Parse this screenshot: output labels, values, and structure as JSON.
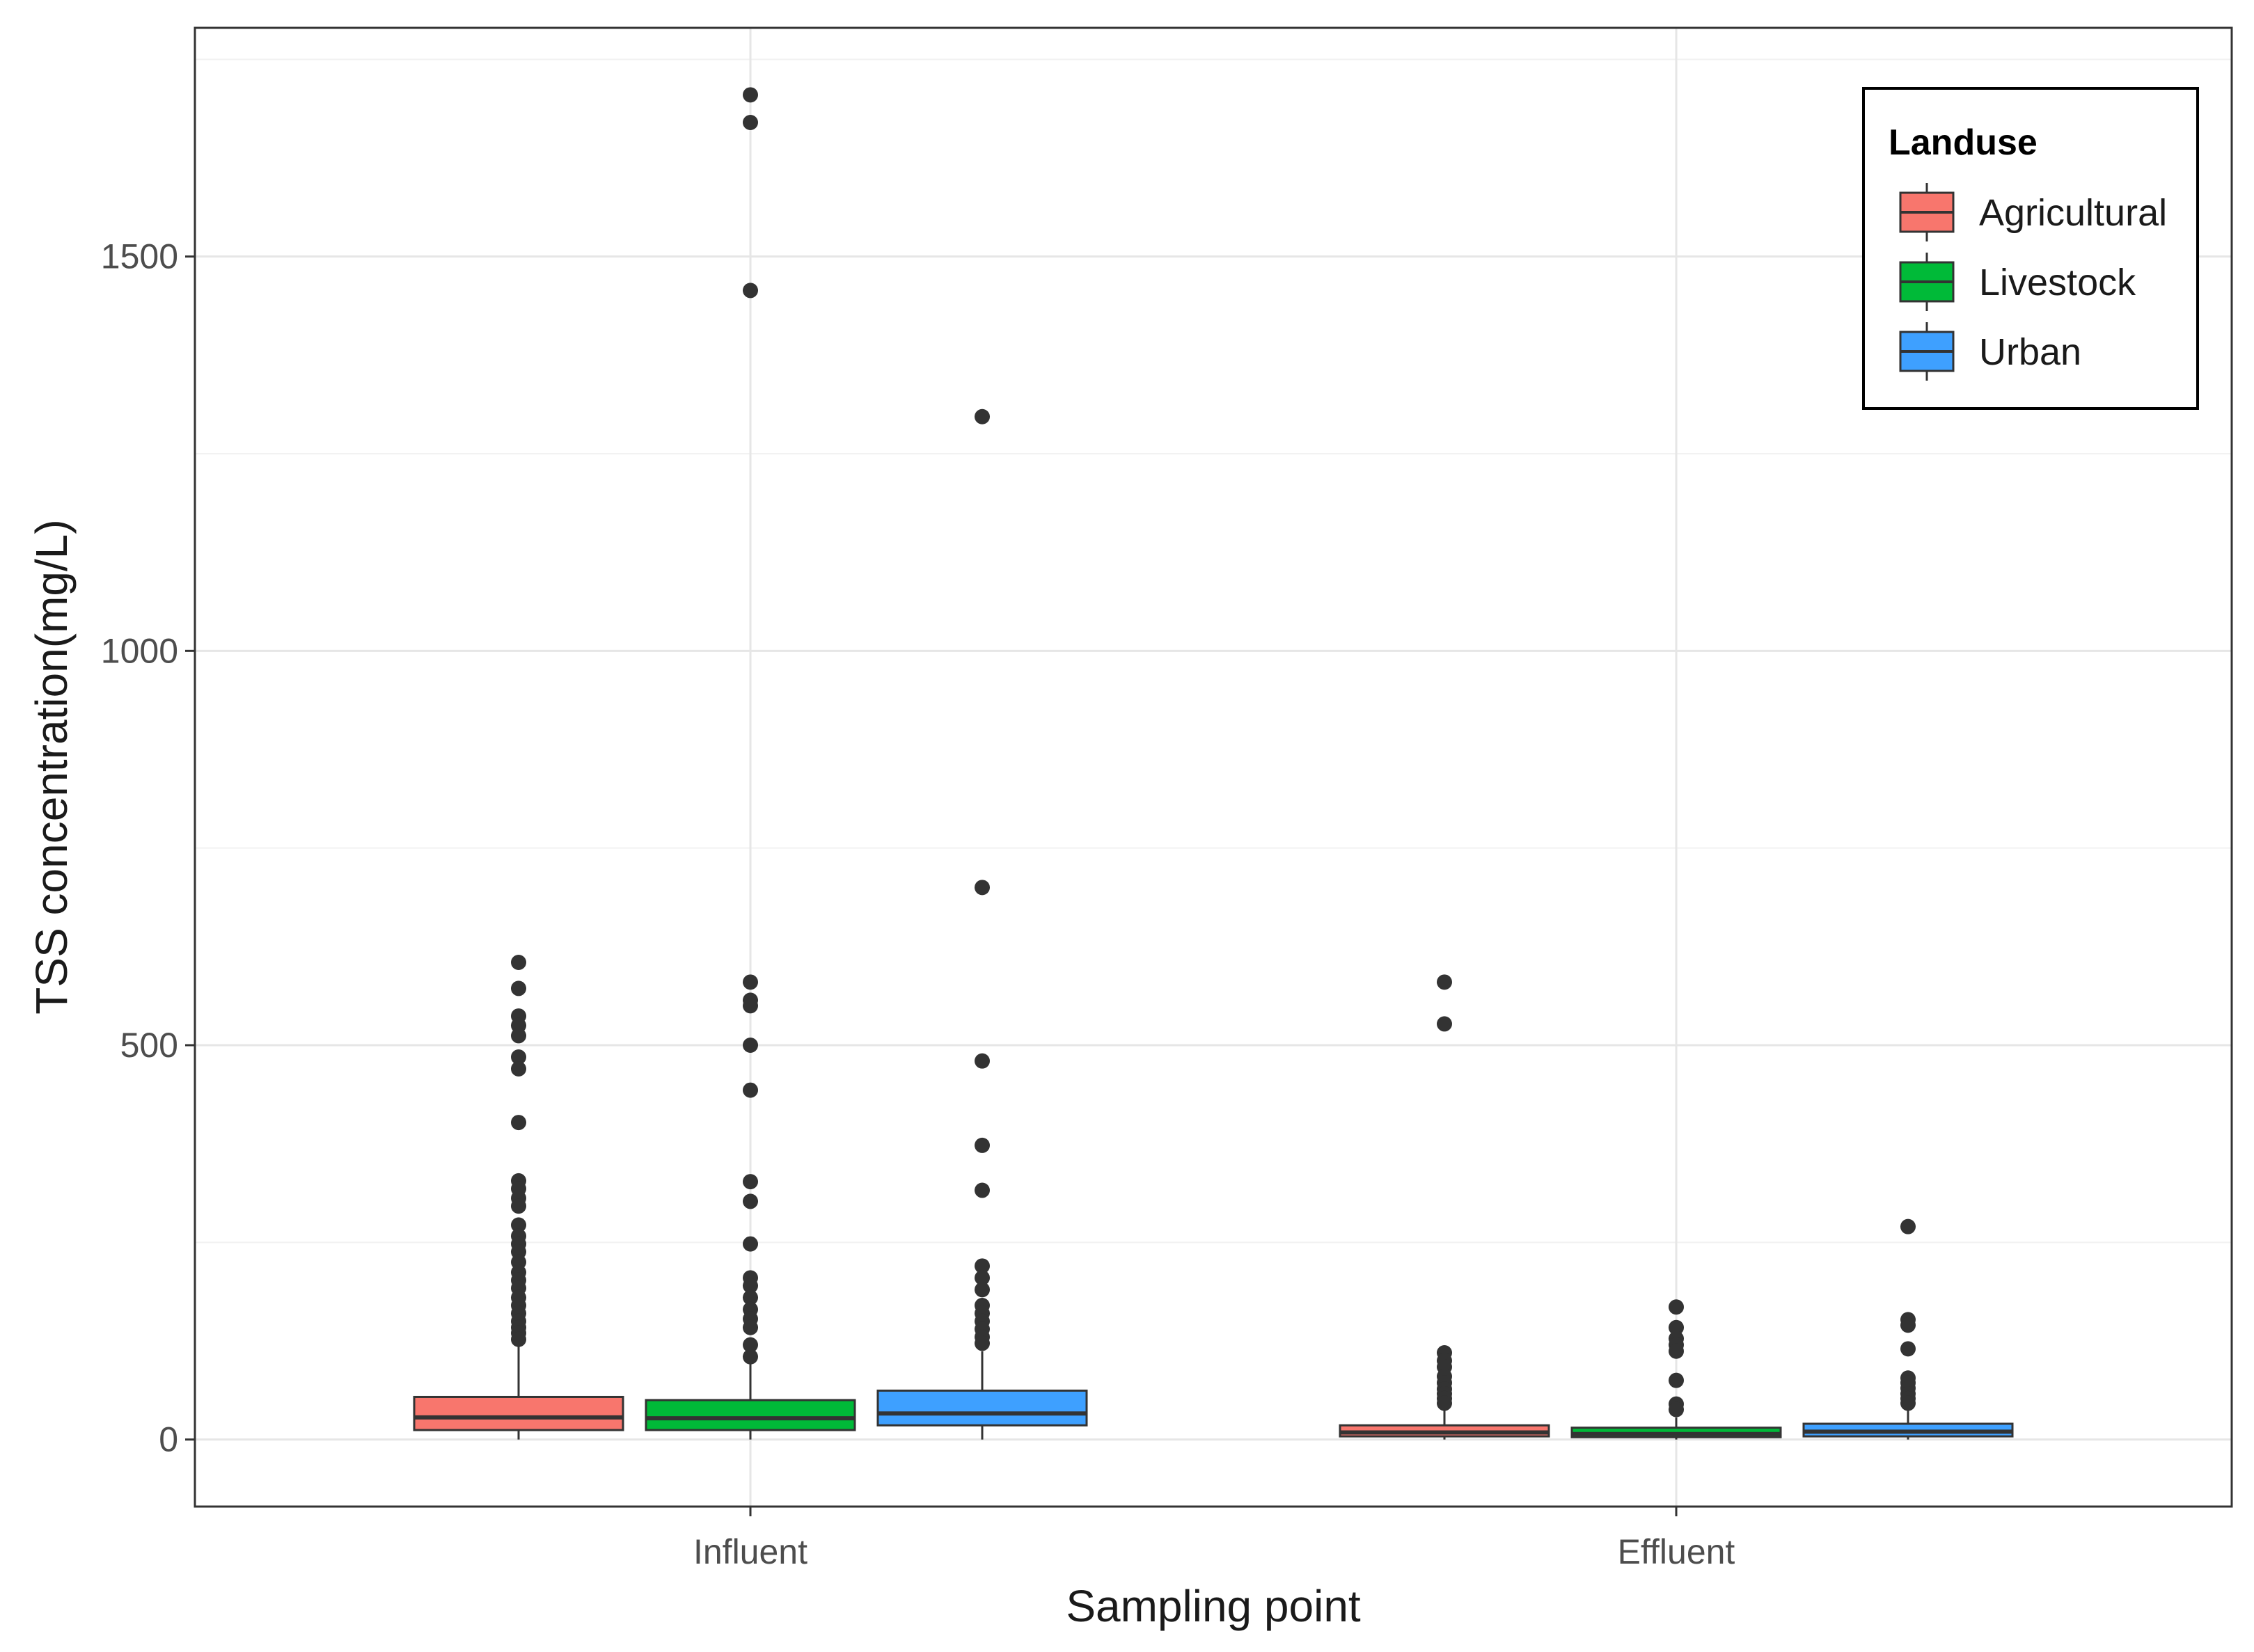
{
  "chart_data": {
    "type": "boxplot",
    "xlabel": "Sampling point",
    "ylabel": "TSS concentration(mg/L)",
    "ylim": [
      -85,
      1790
    ],
    "y_ticks": [
      0,
      500,
      1000,
      1500
    ],
    "y_tick_labels": [
      "0",
      "500",
      "1000",
      "1500"
    ],
    "grid": true,
    "categories": [
      "Influent",
      "Effluent"
    ],
    "legend": {
      "title": "Landuse",
      "position": "top-right",
      "entries": [
        "Agricultural",
        "Livestock",
        "Urban"
      ]
    },
    "series": [
      {
        "name": "Agricultural",
        "color": "#F8766D",
        "boxes": [
          {
            "category": "Influent",
            "whisker_low": 0,
            "q1": 12,
            "median": 28,
            "q3": 54,
            "whisker_high": 118,
            "outliers": [
              605,
              572,
              537,
              525,
              512,
              485,
              470,
              402,
              328,
              318,
              306,
              296,
              272,
              258,
              248,
              238,
              225,
              212,
              202,
              192,
              180,
              170,
              160,
              150,
              142,
              135,
              127
            ]
          },
          {
            "category": "Effluent",
            "whisker_low": 0,
            "q1": 4,
            "median": 9,
            "q3": 18,
            "whisker_high": 38,
            "outliers": [
              580,
              527,
              110,
              100,
              92,
              80,
              72,
              64,
              58,
              52,
              46
            ]
          }
        ]
      },
      {
        "name": "Livestock",
        "color": "#00BA38",
        "boxes": [
          {
            "category": "Influent",
            "whisker_low": 0,
            "q1": 12,
            "median": 27,
            "q3": 50,
            "whisker_high": 98,
            "outliers": [
              1705,
              1670,
              1457,
              580,
              557,
              550,
              500,
              443,
              327,
              302,
              248,
              205,
              195,
              180,
              165,
              153,
              142,
              120,
              105
            ]
          },
          {
            "category": "Effluent",
            "whisker_low": 0,
            "q1": 3,
            "median": 7,
            "q3": 15,
            "whisker_high": 28,
            "outliers": [
              168,
              142,
              128,
              120,
              112,
              75,
              45,
              38
            ]
          }
        ]
      },
      {
        "name": "Urban",
        "color": "#3EA0FF",
        "boxes": [
          {
            "category": "Influent",
            "whisker_low": 0,
            "q1": 18,
            "median": 33,
            "q3": 62,
            "whisker_high": 112,
            "outliers": [
              1297,
              700,
              480,
              373,
              316,
              220,
              205,
              190,
              170,
              160,
              150,
              140,
              130,
              122
            ]
          },
          {
            "category": "Effluent",
            "whisker_low": 0,
            "q1": 4,
            "median": 10,
            "q3": 20,
            "whisker_high": 40,
            "outliers": [
              270,
              152,
              145,
              115,
              78,
              72,
              65,
              58,
              52,
              46
            ]
          }
        ]
      }
    ]
  }
}
